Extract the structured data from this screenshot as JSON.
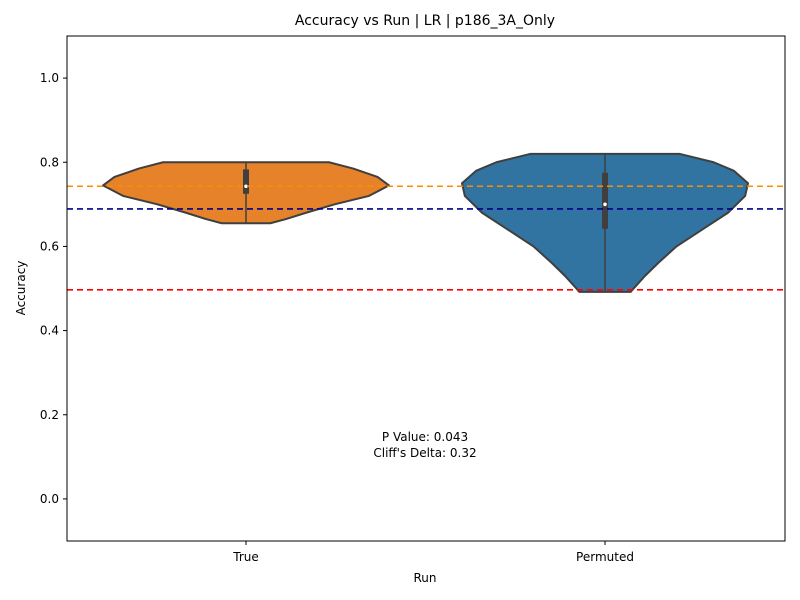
{
  "chart_data": {
    "type": "violin",
    "title": "Accuracy vs Run | LR | p186_3A_Only",
    "xlabel": "Run",
    "ylabel": "Accuracy",
    "categories": [
      "True",
      "Permuted"
    ],
    "ylim": [
      -0.1,
      1.1
    ],
    "yticks": [
      0.0,
      0.2,
      0.4,
      0.6,
      0.8,
      1.0
    ],
    "ytick_labels": [
      "0.0",
      "0.2",
      "0.4",
      "0.6",
      "0.8",
      "1.0"
    ],
    "grid": false,
    "violins": [
      {
        "category": "True",
        "color": "#e6822a",
        "min": 0.655,
        "max": 0.8,
        "q1": 0.725,
        "median": 0.743,
        "q3": 0.783,
        "profile": [
          [
            0.655,
            0.17
          ],
          [
            0.665,
            0.28
          ],
          [
            0.68,
            0.42
          ],
          [
            0.7,
            0.62
          ],
          [
            0.72,
            0.86
          ],
          [
            0.745,
            1.0
          ],
          [
            0.765,
            0.92
          ],
          [
            0.785,
            0.75
          ],
          [
            0.8,
            0.58
          ]
        ]
      },
      {
        "category": "Permuted",
        "color": "#3274a1",
        "min": 0.492,
        "max": 0.82,
        "q1": 0.642,
        "median": 0.7,
        "q3": 0.775,
        "profile": [
          [
            0.492,
            0.18
          ],
          [
            0.5,
            0.2
          ],
          [
            0.53,
            0.28
          ],
          [
            0.56,
            0.37
          ],
          [
            0.6,
            0.5
          ],
          [
            0.64,
            0.68
          ],
          [
            0.68,
            0.86
          ],
          [
            0.72,
            0.98
          ],
          [
            0.75,
            1.0
          ],
          [
            0.78,
            0.9
          ],
          [
            0.8,
            0.76
          ],
          [
            0.82,
            0.52
          ]
        ]
      }
    ],
    "reference_lines": [
      {
        "y": 0.743,
        "color": "#ff8c00"
      },
      {
        "y": 0.689,
        "color": "#00008b"
      },
      {
        "y": 0.497,
        "color": "#ff0000"
      }
    ],
    "annotations": [
      "P Value: 0.043",
      "Cliff's Delta: 0.32"
    ]
  }
}
